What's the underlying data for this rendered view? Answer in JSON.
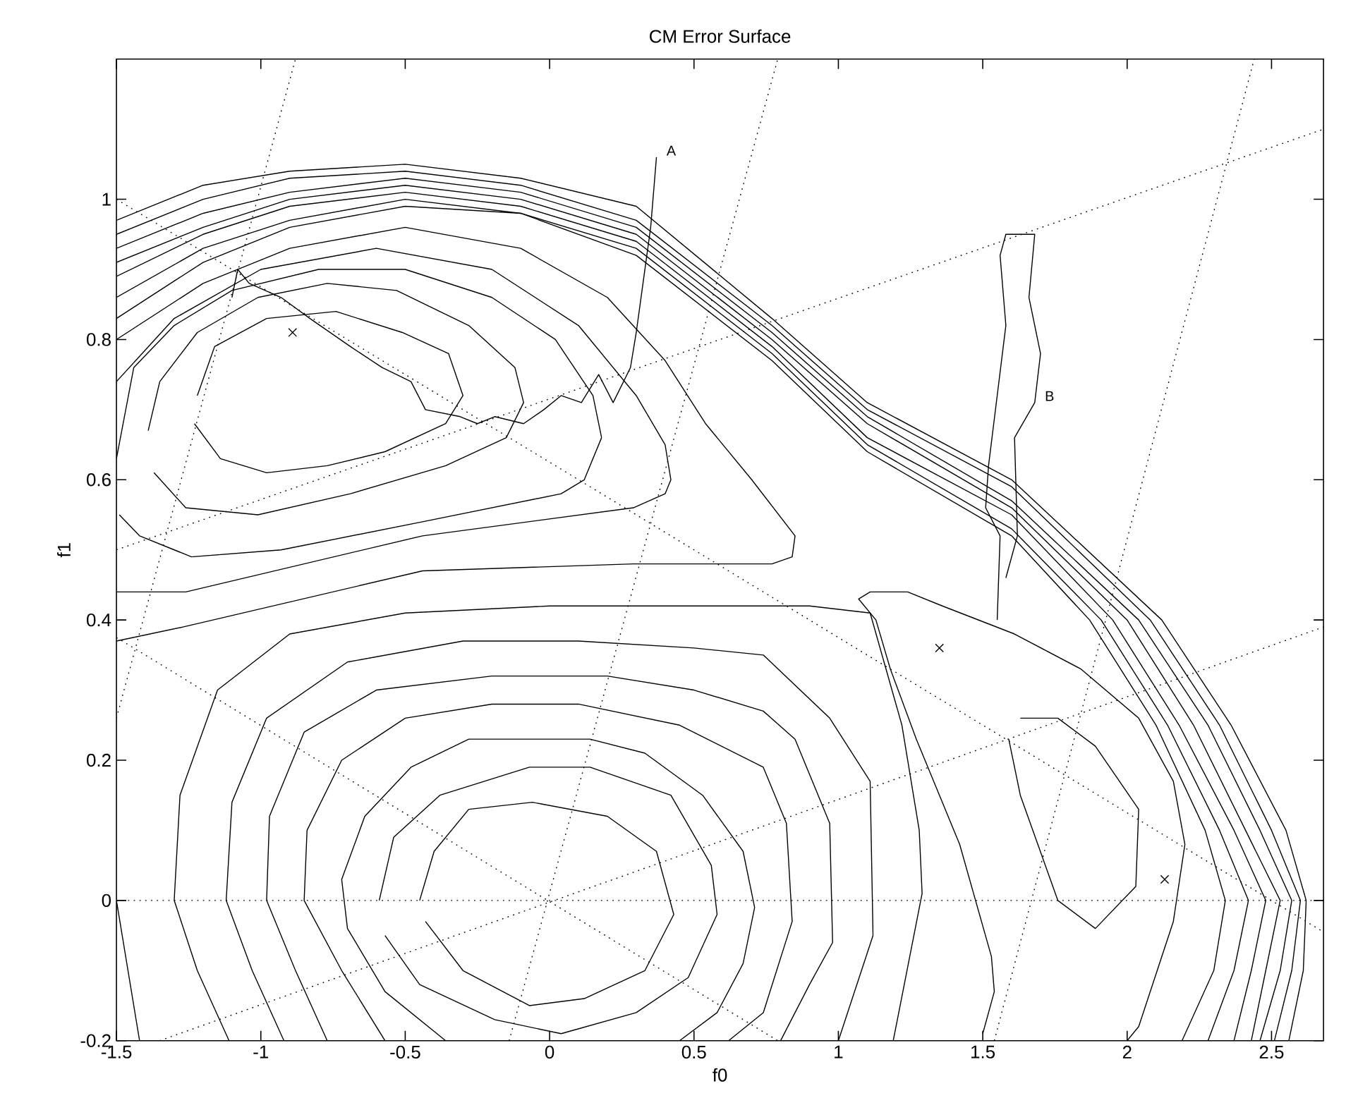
{
  "chart_data": {
    "type": "line",
    "title": "CM Error Surface",
    "xlabel": "f0",
    "ylabel": "f1",
    "xlim": [
      -1.5,
      2.68
    ],
    "ylim": [
      -0.2,
      1.2
    ],
    "xticks": [
      -1.5,
      -1,
      -0.5,
      0,
      0.5,
      1,
      1.5,
      2,
      2.5
    ],
    "yticks": [
      -0.2,
      0,
      0.2,
      0.4,
      0.6,
      0.8,
      1
    ],
    "ref_lines": [
      {
        "axis": "y",
        "value": 0,
        "color": "#000000",
        "line_style": "dotted"
      }
    ],
    "annotations": [
      {
        "text": "A",
        "x": 0.37,
        "y": 1.06
      },
      {
        "text": "B",
        "x": 1.68,
        "y": 0.71
      }
    ],
    "series": [
      {
        "color": "#000000",
        "x": [
          0.37,
          0.35,
          0.32,
          0.3,
          0.28,
          0.22,
          0.17,
          0.11,
          0.04,
          -0.02,
          -0.09,
          -0.19,
          -0.25,
          -0.31,
          -0.43,
          -0.48,
          -0.58,
          -0.69,
          -0.83,
          -0.93,
          -1.04,
          -1.08,
          -1.1
        ],
        "values": [
          1.06,
          0.96,
          0.87,
          0.81,
          0.76,
          0.71,
          0.75,
          0.71,
          0.72,
          0.7,
          0.68,
          0.69,
          0.68,
          0.69,
          0.7,
          0.74,
          0.76,
          0.79,
          0.83,
          0.86,
          0.88,
          0.9,
          0.86
        ]
      },
      {
        "color": "#000000",
        "x": [
          1.55,
          1.56,
          1.51,
          1.52,
          1.55,
          1.58,
          1.56,
          1.58,
          1.68,
          1.66,
          1.7,
          1.68,
          1.61,
          1.62,
          1.58
        ],
        "values": [
          0.4,
          0.52,
          0.56,
          0.62,
          0.72,
          0.82,
          0.92,
          0.95,
          0.95,
          0.86,
          0.78,
          0.71,
          0.66,
          0.52,
          0.46
        ]
      },
      {
        "color": "#000000",
        "x": [
          -0.45,
          -0.4,
          -0.28,
          -0.06,
          0.2,
          0.37,
          0.43,
          0.33,
          0.12,
          -0.07,
          -0.3,
          -0.43
        ],
        "values": [
          0.0,
          0.07,
          0.13,
          0.14,
          0.12,
          0.07,
          -0.02,
          -0.1,
          -0.14,
          -0.15,
          -0.1,
          -0.03
        ]
      },
      {
        "color": "#000000",
        "x": [
          -0.59,
          -0.54,
          -0.38,
          -0.07,
          0.14,
          0.42,
          0.56,
          0.58,
          0.48,
          0.3,
          0.04,
          -0.19,
          -0.45,
          -0.57
        ],
        "values": [
          0.0,
          0.09,
          0.15,
          0.19,
          0.19,
          0.15,
          0.05,
          -0.02,
          -0.11,
          -0.16,
          -0.19,
          -0.17,
          -0.12,
          -0.05
        ]
      },
      {
        "color": "#000000",
        "x": [
          -0.36,
          -0.57,
          -0.7,
          -0.72,
          -0.64,
          -0.48,
          -0.28,
          -0.06,
          0.14,
          0.33,
          0.53,
          0.67,
          0.71,
          0.67,
          0.58,
          0.45
        ],
        "values": [
          -0.2,
          -0.13,
          -0.04,
          0.03,
          0.12,
          0.19,
          0.23,
          0.23,
          0.23,
          0.21,
          0.15,
          0.07,
          -0.01,
          -0.09,
          -0.16,
          -0.2
        ]
      },
      {
        "color": "#000000",
        "x": [
          -0.57,
          -0.72,
          -0.85,
          -0.84,
          -0.72,
          -0.5,
          -0.2,
          0.1,
          0.45,
          0.74,
          0.82,
          0.84,
          0.74,
          0.62
        ],
        "values": [
          -0.2,
          -0.1,
          0.0,
          0.1,
          0.2,
          0.26,
          0.28,
          0.28,
          0.25,
          0.19,
          0.11,
          -0.03,
          -0.16,
          -0.2
        ]
      },
      {
        "color": "#000000",
        "x": [
          -0.77,
          -0.88,
          -0.98,
          -0.97,
          -0.85,
          -0.6,
          -0.2,
          0.2,
          0.5,
          0.74,
          0.85,
          0.97,
          0.98,
          0.9,
          0.8
        ],
        "values": [
          -0.2,
          -0.1,
          0.0,
          0.12,
          0.24,
          0.3,
          0.32,
          0.32,
          0.3,
          0.27,
          0.23,
          0.11,
          -0.06,
          -0.12,
          -0.2
        ]
      },
      {
        "color": "#000000",
        "x": [
          -0.92,
          -1.03,
          -1.12,
          -1.1,
          -0.98,
          -0.7,
          -0.3,
          0.1,
          0.5,
          0.74,
          0.97,
          1.11,
          1.12,
          1.0
        ],
        "values": [
          -0.2,
          -0.1,
          0.0,
          0.14,
          0.26,
          0.34,
          0.37,
          0.37,
          0.36,
          0.35,
          0.26,
          0.17,
          -0.05,
          -0.2
        ]
      },
      {
        "color": "#000000",
        "x": [
          -1.11,
          -1.22,
          -1.3,
          -1.28,
          -1.15,
          -0.9,
          -0.5,
          0.0,
          0.5,
          0.9,
          1.11,
          1.22,
          1.28,
          1.29,
          1.19
        ],
        "values": [
          -0.2,
          -0.1,
          0.0,
          0.15,
          0.3,
          0.38,
          0.41,
          0.42,
          0.42,
          0.42,
          0.41,
          0.25,
          0.1,
          0.01,
          -0.2
        ]
      },
      {
        "color": "#000000",
        "x": [
          -1.5,
          -1.46,
          -1.42
        ],
        "values": [
          0.0,
          -0.1,
          -0.2
        ]
      },
      {
        "color": "#000000",
        "x": [
          -1.22,
          -1.16,
          -0.98,
          -0.74,
          -0.51,
          -0.35,
          -0.3,
          -0.36,
          -0.57,
          -0.77,
          -0.98,
          -1.14,
          -1.23
        ],
        "values": [
          0.72,
          0.79,
          0.83,
          0.84,
          0.81,
          0.78,
          0.72,
          0.68,
          0.64,
          0.62,
          0.61,
          0.63,
          0.68
        ]
      },
      {
        "color": "#000000",
        "x": [
          -1.39,
          -1.35,
          -1.22,
          -1.01,
          -0.77,
          -0.53,
          -0.28,
          -0.12,
          -0.09,
          -0.15,
          -0.36,
          -0.69,
          -1.01,
          -1.26,
          -1.37
        ],
        "values": [
          0.67,
          0.74,
          0.81,
          0.86,
          0.88,
          0.87,
          0.82,
          0.76,
          0.71,
          0.66,
          0.62,
          0.58,
          0.55,
          0.56,
          0.61
        ]
      },
      {
        "color": "#000000",
        "x": [
          -1.5,
          -1.44,
          -1.3,
          -1.1,
          -0.8,
          -0.5,
          -0.2,
          0.02,
          0.15,
          0.18,
          0.12,
          0.04,
          -0.44,
          -0.93,
          -1.24,
          -1.42,
          -1.49
        ],
        "values": [
          0.63,
          0.76,
          0.82,
          0.87,
          0.9,
          0.9,
          0.86,
          0.8,
          0.72,
          0.66,
          0.6,
          0.58,
          0.54,
          0.5,
          0.49,
          0.52,
          0.55
        ]
      },
      {
        "color": "#000000",
        "x": [
          -1.5,
          -1.3,
          -1.0,
          -0.6,
          -0.2,
          0.1,
          0.3,
          0.4,
          0.42,
          0.4,
          0.29,
          -0.44,
          -1.26,
          -1.5
        ],
        "values": [
          0.74,
          0.83,
          0.9,
          0.93,
          0.9,
          0.82,
          0.72,
          0.65,
          0.6,
          0.58,
          0.56,
          0.52,
          0.44,
          0.44
        ]
      },
      {
        "color": "#000000",
        "x": [
          -1.5,
          -1.2,
          -0.9,
          -0.5,
          -0.1,
          0.2,
          0.4,
          0.54,
          0.7,
          0.85,
          0.84,
          0.77,
          0.29,
          -0.44,
          -1.27,
          -1.5
        ],
        "values": [
          0.8,
          0.88,
          0.93,
          0.96,
          0.93,
          0.86,
          0.77,
          0.68,
          0.6,
          0.52,
          0.49,
          0.48,
          0.48,
          0.47,
          0.39,
          0.37
        ]
      },
      {
        "color": "#000000",
        "x": [
          -1.5,
          -1.2,
          -0.9,
          -0.5,
          -0.1,
          0.3,
          0.77,
          1.1,
          1.6,
          1.87,
          2.1,
          2.27,
          2.34,
          2.3,
          2.19
        ],
        "values": [
          0.83,
          0.91,
          0.96,
          0.99,
          0.98,
          0.92,
          0.77,
          0.64,
          0.52,
          0.4,
          0.25,
          0.1,
          0.0,
          -0.1,
          -0.2
        ]
      },
      {
        "color": "#000000",
        "x": [
          -1.5,
          -1.2,
          -0.9,
          -0.5,
          -0.1,
          0.3,
          0.77,
          1.1,
          1.6,
          1.91,
          2.14,
          2.32,
          2.42,
          2.37,
          2.28
        ],
        "values": [
          0.86,
          0.93,
          0.97,
          1.0,
          0.98,
          0.93,
          0.78,
          0.65,
          0.53,
          0.4,
          0.25,
          0.1,
          0.0,
          -0.1,
          -0.2
        ]
      },
      {
        "color": "#000000",
        "x": [
          -1.5,
          -1.2,
          -0.9,
          -0.5,
          -0.1,
          0.3,
          0.77,
          1.1,
          1.6,
          1.95,
          2.18,
          2.37,
          2.48,
          2.43,
          2.37
        ],
        "values": [
          0.89,
          0.95,
          0.99,
          1.01,
          0.99,
          0.94,
          0.79,
          0.66,
          0.55,
          0.4,
          0.25,
          0.1,
          0.0,
          -0.1,
          -0.2
        ]
      },
      {
        "color": "#000000",
        "x": [
          -1.5,
          -1.2,
          -0.9,
          -0.5,
          -0.1,
          0.3,
          0.77,
          1.1,
          1.6,
          2.0,
          2.23,
          2.41,
          2.53,
          2.48,
          2.43
        ],
        "values": [
          0.91,
          0.96,
          1.0,
          1.02,
          1.0,
          0.95,
          0.8,
          0.68,
          0.56,
          0.4,
          0.25,
          0.1,
          0.0,
          -0.1,
          -0.2
        ]
      },
      {
        "color": "#000000",
        "x": [
          -1.5,
          -1.2,
          -0.9,
          -0.5,
          -0.1,
          0.3,
          0.77,
          1.1,
          1.6,
          2.04,
          2.28,
          2.46,
          2.57,
          2.53,
          2.46
        ],
        "values": [
          0.93,
          0.98,
          1.01,
          1.03,
          1.01,
          0.96,
          0.81,
          0.69,
          0.57,
          0.4,
          0.25,
          0.1,
          0.0,
          -0.1,
          -0.2
        ]
      },
      {
        "color": "#000000",
        "x": [
          -1.5,
          -1.2,
          -0.9,
          -0.5,
          -0.1,
          0.3,
          0.77,
          1.1,
          1.6,
          2.08,
          2.32,
          2.5,
          2.6,
          2.57,
          2.51
        ],
        "values": [
          0.95,
          1.0,
          1.03,
          1.04,
          1.02,
          0.97,
          0.82,
          0.7,
          0.59,
          0.4,
          0.25,
          0.1,
          0.0,
          -0.1,
          -0.2
        ]
      },
      {
        "color": "#000000",
        "x": [
          -1.5,
          -1.2,
          -0.9,
          -0.5,
          -0.1,
          0.3,
          0.77,
          1.1,
          1.6,
          2.12,
          2.36,
          2.55,
          2.62,
          2.61,
          2.56
        ],
        "values": [
          0.97,
          1.02,
          1.04,
          1.05,
          1.03,
          0.99,
          0.83,
          0.71,
          0.6,
          0.4,
          0.25,
          0.1,
          0.0,
          -0.1,
          -0.2
        ]
      },
      {
        "color": "#000000",
        "x": [
          1.5,
          1.54,
          1.53,
          1.42,
          1.27,
          1.18,
          1.13,
          1.07,
          1.11,
          1.24,
          1.36,
          1.61,
          1.84,
          2.04,
          2.16,
          2.2,
          2.16,
          2.04,
          2.0
        ],
        "values": [
          -0.19,
          -0.13,
          -0.08,
          0.08,
          0.23,
          0.33,
          0.4,
          0.43,
          0.44,
          0.44,
          0.42,
          0.38,
          0.33,
          0.26,
          0.17,
          0.08,
          -0.03,
          -0.18,
          -0.2
        ]
      },
      {
        "color": "#000000",
        "x": [
          1.63,
          1.76,
          1.89,
          2.04,
          2.03,
          1.89,
          1.76,
          1.63,
          1.59
        ],
        "values": [
          0.26,
          0.26,
          0.22,
          0.13,
          0.02,
          -0.04,
          0.0,
          0.15,
          0.23
        ]
      },
      {
        "color": "#000000",
        "line_style": "dotted",
        "x": [
          -0.14,
          0.79
        ],
        "values": [
          -0.2,
          1.2
        ]
      },
      {
        "color": "#000000",
        "line_style": "dotted",
        "x": [
          -1.35,
          2.68
        ],
        "values": [
          -0.2,
          0.39
        ]
      },
      {
        "color": "#000000",
        "line_style": "dotted",
        "x": [
          -1.5,
          0.79
        ],
        "values": [
          0.375,
          -0.2
        ]
      },
      {
        "color": "#000000",
        "line_style": "dotted",
        "x": [
          -1.5,
          2.68
        ],
        "values": [
          1.0,
          -0.045
        ]
      },
      {
        "color": "#000000",
        "line_style": "dotted",
        "x": [
          1.54,
          2.44
        ],
        "values": [
          -0.2,
          1.2
        ]
      },
      {
        "color": "#000000",
        "line_style": "dotted",
        "x": [
          -1.5,
          -0.88
        ],
        "values": [
          0.26,
          1.2
        ]
      },
      {
        "color": "#000000",
        "line_style": "dotted",
        "x": [
          -1.5,
          2.68
        ],
        "values": [
          0.5,
          1.1
        ]
      },
      {
        "type": "scatter",
        "marker": "cross",
        "color": "#000000",
        "x": [
          -0.89
        ],
        "values": [
          0.81
        ]
      },
      {
        "type": "scatter",
        "marker": "cross",
        "color": "#000000",
        "x": [
          1.35,
          2.13
        ],
        "values": [
          0.36,
          0.03
        ]
      }
    ]
  }
}
